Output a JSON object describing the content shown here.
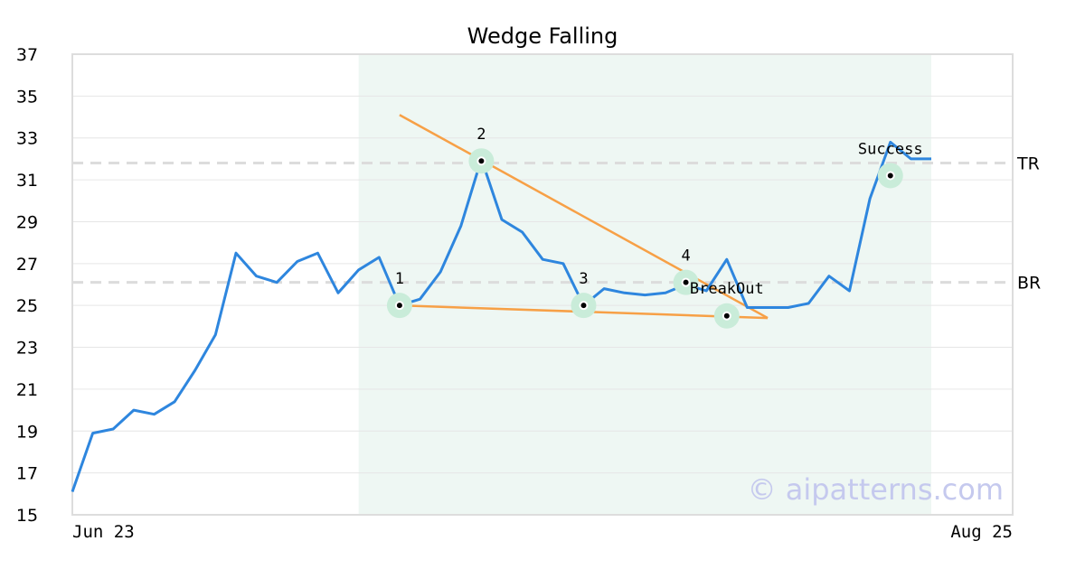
{
  "chart_data": {
    "type": "line",
    "title": "Wedge Falling",
    "xlabel": "",
    "ylabel": "",
    "ylim": [
      15,
      37
    ],
    "y_ticks": [
      15,
      17,
      19,
      21,
      23,
      25,
      27,
      29,
      31,
      33,
      35,
      37
    ],
    "x_tick_labels": [
      {
        "index": 0,
        "label": "Jun 23"
      },
      {
        "index": 42,
        "label": "Aug 25"
      }
    ],
    "grid": "horizontal",
    "series": [
      {
        "color": "#2e86de",
        "values": [
          16.1,
          18.9,
          19.1,
          20.0,
          19.8,
          20.4,
          21.9,
          23.6,
          27.5,
          26.4,
          26.1,
          27.1,
          27.5,
          25.6,
          26.7,
          27.3,
          25.0,
          25.3,
          26.6,
          28.8,
          32.0,
          29.1,
          28.5,
          27.2,
          27.0,
          25.0,
          25.8,
          25.6,
          25.5,
          25.6,
          26.0,
          25.7,
          27.2,
          24.9,
          24.9,
          24.9,
          25.1,
          26.4,
          25.7,
          30.1,
          32.8,
          32.0,
          32.0
        ]
      }
    ],
    "pattern_region": {
      "start_index": 14,
      "end_index": 42,
      "color": "#eef7f3"
    },
    "levels": [
      {
        "label": "TR",
        "value": 31.8
      },
      {
        "label": "BR",
        "value": 26.1
      }
    ],
    "trendlines": [
      {
        "color": "#f7a046",
        "from": {
          "index": 16,
          "value": 34.1
        },
        "to": {
          "index": 34,
          "value": 24.4
        }
      },
      {
        "color": "#f7a046",
        "from": {
          "index": 16,
          "value": 25.0
        },
        "to": {
          "index": 34,
          "value": 24.4
        }
      }
    ],
    "markers": [
      {
        "label": "1",
        "index": 16,
        "value": 25.0
      },
      {
        "label": "2",
        "index": 20,
        "value": 31.9
      },
      {
        "label": "3",
        "index": 25,
        "value": 25.0
      },
      {
        "label": "4",
        "index": 30,
        "value": 26.1
      },
      {
        "label": "BreakOut",
        "index": 32,
        "value": 24.5
      },
      {
        "label": "Success",
        "index": 40,
        "value": 31.2
      }
    ],
    "watermark": "© aipatterns.com"
  }
}
